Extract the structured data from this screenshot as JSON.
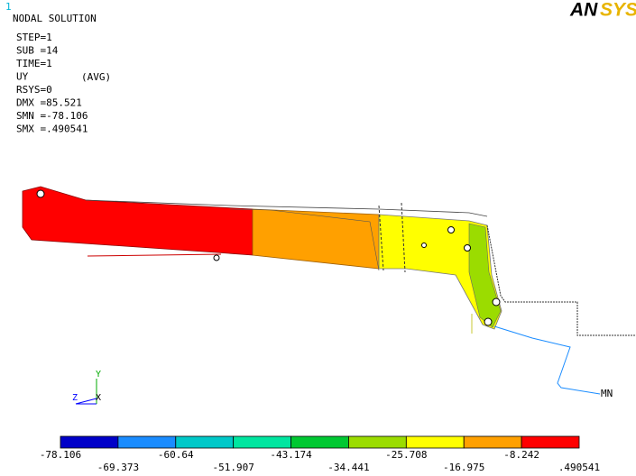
{
  "window_number": "1",
  "info": {
    "title": "NODAL SOLUTION",
    "lines": [
      "STEP=1",
      "SUB =14",
      "TIME=1",
      "UY",
      "RSYS=0",
      "DMX =85.521",
      "SMN =-78.106",
      "SMX =.490541"
    ],
    "avg": "(AVG)"
  },
  "logo_parts": [
    "AN",
    "SYS"
  ],
  "triad": {
    "y": "Y",
    "z": "Z",
    "x": "X"
  },
  "min_label": "MN",
  "legend": {
    "colors": [
      "#0000c8",
      "#1a8cff",
      "#00c8c8",
      "#00e6a0",
      "#00c832",
      "#9bdc00",
      "#ffff00",
      "#ffa000",
      "#ff0000"
    ],
    "labels": [
      "-78.106",
      "-69.373",
      "-60.64",
      "-51.907",
      "-43.174",
      "-34.441",
      "-25.708",
      "-16.975",
      "-8.242",
      ".490541"
    ]
  }
}
